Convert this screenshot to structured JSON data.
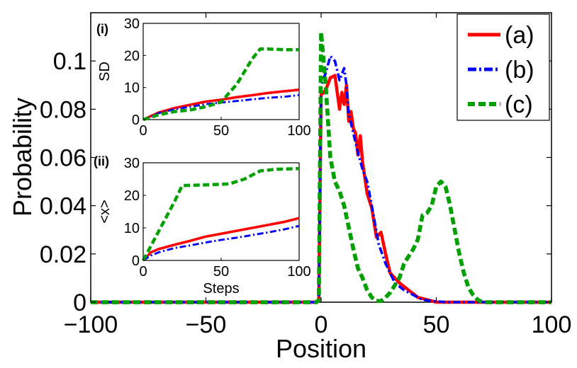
{
  "chart_data": {
    "type": "line",
    "xlabel": "Position",
    "ylabel": "Probability",
    "xlim": [
      -100,
      100
    ],
    "ylim": [
      0,
      0.12
    ],
    "xticks": [
      -100,
      -50,
      0,
      50,
      100
    ],
    "xtick_labels": [
      "−100",
      "−50",
      "0",
      "50",
      "100"
    ],
    "yticks": [
      0,
      0.02,
      0.04,
      0.06,
      0.08,
      0.1
    ],
    "ytick_labels": [
      "0",
      "0.02",
      "0.04",
      "0.06",
      "0.08",
      "0.1"
    ],
    "legend": {
      "placement": "top-right",
      "entries": [
        "(a)",
        "(b)",
        "(c)"
      ]
    },
    "series": [
      {
        "name": "(a)",
        "color": "#ff0000",
        "style": "solid",
        "x": [
          -100,
          -2,
          -1,
          0,
          2,
          4,
          6,
          8,
          9,
          10,
          11,
          12,
          13,
          14,
          15,
          16,
          17,
          18,
          20,
          22,
          24,
          26,
          28,
          30,
          34,
          38,
          42,
          46,
          50,
          60,
          100
        ],
        "y": [
          0,
          0,
          0.001,
          0.086,
          0.088,
          0.093,
          0.094,
          0.08,
          0.087,
          0.082,
          0.09,
          0.075,
          0.079,
          0.072,
          0.07,
          0.061,
          0.069,
          0.058,
          0.045,
          0.039,
          0.027,
          0.029,
          0.02,
          0.012,
          0.008,
          0.005,
          0.002,
          0.001,
          0,
          0,
          0
        ]
      },
      {
        "name": "(b)",
        "color": "#0000ff",
        "style": "dashdot",
        "x": [
          -100,
          -2,
          -1,
          0,
          2,
          4,
          6,
          8,
          10,
          11,
          12,
          14,
          16,
          18,
          20,
          22,
          25,
          28,
          32,
          36,
          40,
          44,
          48,
          55,
          100
        ],
        "y": [
          0,
          0,
          0.001,
          0.09,
          0.095,
          0.102,
          0.1,
          0.092,
          0.097,
          0.09,
          0.078,
          0.07,
          0.062,
          0.055,
          0.05,
          0.04,
          0.024,
          0.016,
          0.008,
          0.005,
          0.003,
          0.001,
          0.0005,
          0,
          0
        ]
      },
      {
        "name": "(c)",
        "color": "#00a000",
        "style": "dashed",
        "x": [
          -100,
          -2,
          -1,
          0,
          2,
          4,
          6,
          8,
          10,
          12,
          14,
          16,
          18,
          20,
          22,
          24,
          26,
          28,
          30,
          32,
          34,
          36,
          38,
          40,
          42,
          44,
          46,
          48,
          50,
          52,
          54,
          56,
          58,
          60,
          62,
          64,
          66,
          68,
          70,
          72,
          100
        ],
        "y": [
          0,
          0,
          0.001,
          0.112,
          0.09,
          0.06,
          0.05,
          0.046,
          0.04,
          0.031,
          0.022,
          0.014,
          0.01,
          0.005,
          0.002,
          0.0005,
          0.0005,
          0.002,
          0.004,
          0.007,
          0.01,
          0.016,
          0.019,
          0.022,
          0.026,
          0.036,
          0.037,
          0.04,
          0.048,
          0.05,
          0.048,
          0.04,
          0.03,
          0.02,
          0.012,
          0.006,
          0.003,
          0.001,
          0,
          0,
          0
        ]
      }
    ],
    "insets": [
      {
        "tag": "(i)",
        "ylabel": "SD",
        "xlabel": "",
        "xlim": [
          0,
          100
        ],
        "ylim": [
          0,
          30
        ],
        "xticks": [
          0,
          50,
          100
        ],
        "yticks": [
          0,
          10,
          20,
          30
        ],
        "series": [
          {
            "name": "(a)",
            "color": "#ff0000",
            "style": "solid",
            "x": [
              0,
              10,
              20,
              30,
              40,
              50,
              60,
              70,
              80,
              90,
              100
            ],
            "y": [
              0,
              2.2,
              3.6,
              4.6,
              5.6,
              6.2,
              7,
              7.6,
              8.3,
              8.8,
              9.3
            ]
          },
          {
            "name": "(b)",
            "color": "#0000ff",
            "style": "dashdot",
            "x": [
              0,
              10,
              20,
              30,
              40,
              50,
              60,
              70,
              80,
              90,
              100
            ],
            "y": [
              0,
              2,
              3.2,
              4,
              4.8,
              5.3,
              5.8,
              6.3,
              6.8,
              7.1,
              7.6
            ]
          },
          {
            "name": "(c)",
            "color": "#00a000",
            "style": "dashed",
            "x": [
              0,
              10,
              20,
              30,
              40,
              50,
              60,
              70,
              75,
              80,
              90,
              100
            ],
            "y": [
              0,
              1.5,
              2.5,
              3,
              4,
              5.5,
              11,
              19,
              22,
              22,
              21.8,
              21.8
            ]
          }
        ]
      },
      {
        "tag": "(ii)",
        "ylabel": "<x>",
        "xlabel": "Steps",
        "xlim": [
          0,
          100
        ],
        "ylim": [
          0,
          30
        ],
        "xticks": [
          0,
          50,
          100
        ],
        "yticks": [
          0,
          10,
          20,
          30
        ],
        "series": [
          {
            "name": "(a)",
            "color": "#ff0000",
            "style": "solid",
            "x": [
              0,
              5,
              10,
              20,
              30,
              40,
              50,
              60,
              70,
              80,
              90,
              100
            ],
            "y": [
              0,
              2.5,
              3.5,
              4.8,
              6,
              7.3,
              8.2,
              9.1,
              10,
              10.9,
              11.8,
              13
            ]
          },
          {
            "name": "(b)",
            "color": "#0000ff",
            "style": "dashdot",
            "x": [
              0,
              5,
              10,
              20,
              30,
              40,
              50,
              60,
              70,
              80,
              90,
              100
            ],
            "y": [
              0,
              1.5,
              2.5,
              3.8,
              4.6,
              5.5,
              6.3,
              7,
              7.8,
              8.6,
              9.5,
              10.6
            ]
          },
          {
            "name": "(c)",
            "color": "#00a000",
            "style": "dashed",
            "x": [
              0,
              10,
              20,
              25,
              40,
              55,
              65,
              75,
              85,
              100
            ],
            "y": [
              0,
              9,
              18,
              23,
              23.2,
              23.5,
              25,
              27.5,
              28,
              28.2
            ]
          }
        ]
      }
    ]
  }
}
